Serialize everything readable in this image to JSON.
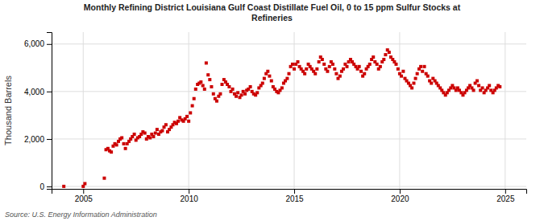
{
  "chart_data": {
    "type": "scatter",
    "title": "Monthly Refining District Louisiana Gulf Coast Distillate Fuel Oil, 0 to 15 ppm Sulfur Stocks at\nRefineries",
    "ylabel": "Thousand Barrels",
    "source": "Source: U.S. Energy Information Administration",
    "color": "#cc0000",
    "marker": "square",
    "grid": true,
    "xlim": [
      2003.5,
      2026.0
    ],
    "ylim": [
      -100,
      6500
    ],
    "xticks": [
      2005,
      2010,
      2015,
      2020,
      2025
    ],
    "yticks": [
      0,
      {
        "value": 2000,
        "label": "2,000"
      },
      {
        "value": 4000,
        "label": "4,000"
      },
      {
        "value": 6000,
        "label": "6,000"
      }
    ],
    "x": [
      2004.08,
      2005.0,
      2005.08,
      2006.0,
      2006.08,
      2006.17,
      2006.25,
      2006.33,
      2006.42,
      2006.5,
      2006.58,
      2006.67,
      2006.75,
      2006.83,
      2006.92,
      2007.0,
      2007.08,
      2007.17,
      2007.25,
      2007.33,
      2007.42,
      2007.5,
      2007.58,
      2007.67,
      2007.75,
      2007.83,
      2007.92,
      2008.0,
      2008.08,
      2008.17,
      2008.25,
      2008.33,
      2008.42,
      2008.5,
      2008.58,
      2008.67,
      2008.75,
      2008.83,
      2008.92,
      2009.0,
      2009.08,
      2009.17,
      2009.25,
      2009.33,
      2009.42,
      2009.5,
      2009.58,
      2009.67,
      2009.75,
      2009.83,
      2009.92,
      2010.0,
      2010.08,
      2010.17,
      2010.25,
      2010.33,
      2010.42,
      2010.5,
      2010.58,
      2010.67,
      2010.75,
      2010.83,
      2010.92,
      2011.0,
      2011.08,
      2011.17,
      2011.25,
      2011.33,
      2011.42,
      2011.5,
      2011.58,
      2011.67,
      2011.75,
      2011.83,
      2011.92,
      2012.0,
      2012.08,
      2012.17,
      2012.25,
      2012.33,
      2012.42,
      2012.5,
      2012.58,
      2012.67,
      2012.75,
      2012.83,
      2012.92,
      2013.0,
      2013.08,
      2013.17,
      2013.25,
      2013.33,
      2013.42,
      2013.5,
      2013.58,
      2013.67,
      2013.75,
      2013.83,
      2013.92,
      2014.0,
      2014.08,
      2014.17,
      2014.25,
      2014.33,
      2014.42,
      2014.5,
      2014.58,
      2014.67,
      2014.75,
      2014.83,
      2014.92,
      2015.0,
      2015.08,
      2015.17,
      2015.25,
      2015.33,
      2015.42,
      2015.5,
      2015.58,
      2015.67,
      2015.75,
      2015.83,
      2015.92,
      2016.0,
      2016.08,
      2016.17,
      2016.25,
      2016.33,
      2016.42,
      2016.5,
      2016.58,
      2016.67,
      2016.75,
      2016.83,
      2016.92,
      2017.0,
      2017.08,
      2017.17,
      2017.25,
      2017.33,
      2017.42,
      2017.5,
      2017.58,
      2017.67,
      2017.75,
      2017.83,
      2017.92,
      2018.0,
      2018.08,
      2018.17,
      2018.25,
      2018.33,
      2018.42,
      2018.5,
      2018.58,
      2018.67,
      2018.75,
      2018.83,
      2018.92,
      2019.0,
      2019.08,
      2019.17,
      2019.25,
      2019.33,
      2019.42,
      2019.5,
      2019.58,
      2019.67,
      2019.75,
      2019.83,
      2019.92,
      2020.0,
      2020.08,
      2020.17,
      2020.25,
      2020.33,
      2020.42,
      2020.5,
      2020.58,
      2020.67,
      2020.75,
      2020.83,
      2020.92,
      2021.0,
      2021.08,
      2021.17,
      2021.25,
      2021.33,
      2021.42,
      2021.5,
      2021.58,
      2021.67,
      2021.75,
      2021.83,
      2021.92,
      2022.0,
      2022.08,
      2022.17,
      2022.25,
      2022.33,
      2022.42,
      2022.5,
      2022.58,
      2022.67,
      2022.75,
      2022.83,
      2022.92,
      2023.0,
      2023.08,
      2023.17,
      2023.25,
      2023.33,
      2023.42,
      2023.5,
      2023.58,
      2023.67,
      2023.75,
      2023.83,
      2023.92,
      2024.0,
      2024.08,
      2024.17,
      2024.25,
      2024.33,
      2024.42,
      2024.5,
      2024.58,
      2024.67,
      2024.75
    ],
    "values": [
      5,
      5,
      120,
      350,
      1550,
      1600,
      1500,
      1450,
      1700,
      1800,
      1750,
      1900,
      2000,
      2050,
      1800,
      1600,
      1800,
      1900,
      2000,
      2100,
      2200,
      1950,
      2050,
      2100,
      2200,
      2300,
      2250,
      2000,
      2100,
      2050,
      2200,
      2100,
      2250,
      2400,
      2200,
      2300,
      2350,
      2500,
      2600,
      2300,
      2400,
      2500,
      2600,
      2700,
      2650,
      2750,
      2900,
      2800,
      2750,
      2850,
      2950,
      2750,
      3100,
      3400,
      3700,
      4100,
      4300,
      4350,
      4400,
      4250,
      4100,
      5200,
      4700,
      4500,
      4200,
      3900,
      3700,
      3600,
      3800,
      3900,
      4300,
      4500,
      4400,
      4300,
      4200,
      4000,
      4100,
      3900,
      3800,
      3950,
      3750,
      3850,
      4000,
      3900,
      4050,
      4100,
      4200,
      4000,
      3900,
      3850,
      3950,
      4150,
      4250,
      4350,
      4550,
      4750,
      4850,
      4650,
      4450,
      4200,
      4100,
      4000,
      3950,
      4050,
      4150,
      4350,
      4450,
      4550,
      4750,
      5050,
      5150,
      4950,
      5150,
      5250,
      5050,
      4950,
      4850,
      4750,
      4950,
      5150,
      5050,
      4950,
      4850,
      4750,
      4950,
      5250,
      5450,
      5350,
      5150,
      4950,
      4850,
      5050,
      5250,
      5150,
      4950,
      4750,
      4550,
      4650,
      4850,
      4950,
      5150,
      5050,
      5250,
      5350,
      5250,
      5150,
      5050,
      4950,
      5050,
      4850,
      4650,
      4750,
      4950,
      5050,
      5150,
      5350,
      5450,
      5250,
      5150,
      4950,
      5050,
      5250,
      5350,
      5550,
      5750,
      5650,
      5450,
      5350,
      5250,
      5150,
      4950,
      4750,
      4650,
      4850,
      4550,
      4450,
      4350,
      4250,
      4150,
      4350,
      4550,
      4750,
      4950,
      5050,
      4850,
      5050,
      4750,
      4650,
      4450,
      4350,
      4550,
      4450,
      4350,
      4250,
      4150,
      4050,
      3950,
      3850,
      3950,
      4050,
      4150,
      4250,
      4150,
      4050,
      4150,
      4050,
      3950,
      3850,
      3950,
      4050,
      4150,
      4250,
      4150,
      4050,
      4350,
      4450,
      4250,
      4050,
      4150,
      3950,
      4050,
      4150,
      4250,
      4050,
      3950,
      4050,
      4150,
      4250,
      4200
    ]
  }
}
